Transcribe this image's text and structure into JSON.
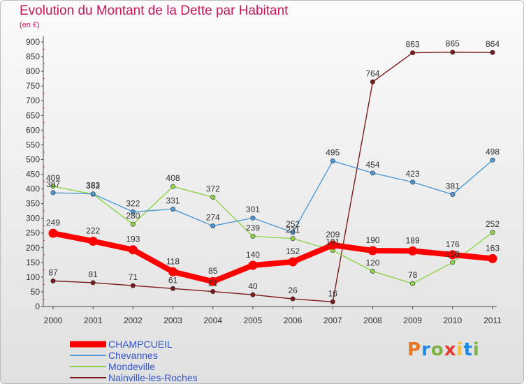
{
  "header": {
    "title": "Evolution du Montant de la Dette par Habitant",
    "subtitle": "(en €)"
  },
  "logo": {
    "text": "Proxiti",
    "colors": [
      "#e87722",
      "#1e88e5",
      "#7cb342",
      "#e53935",
      "#fbc02d",
      "#1e88e5",
      "#7cb342"
    ]
  },
  "chart_data": {
    "type": "line",
    "x": [
      "2000",
      "2001",
      "2002",
      "2003",
      "2004",
      "2005",
      "2006",
      "2007",
      "2008",
      "2009",
      "2010",
      "2011"
    ],
    "ylim": [
      0,
      900
    ],
    "yticks": [
      0,
      50,
      100,
      150,
      200,
      250,
      300,
      350,
      400,
      450,
      500,
      550,
      600,
      650,
      700,
      750,
      800,
      850,
      900
    ],
    "grid": false,
    "legend_position": "bottom-left",
    "series": [
      {
        "name": "Nainville-les-Roches",
        "color": "#7b1a1a",
        "values": [
          87,
          81,
          71,
          61,
          51,
          40,
          26,
          16,
          764,
          863,
          865,
          864
        ]
      },
      {
        "name": "Mondeville",
        "color": "#8fd34b",
        "values": [
          409,
          382,
          280,
          408,
          372,
          239,
          231,
          191,
          120,
          78,
          150,
          252
        ]
      },
      {
        "name": "Chevannes",
        "color": "#4f9ad6",
        "values": [
          387,
          383,
          322,
          331,
          274,
          301,
          252,
          495,
          454,
          423,
          381,
          498
        ]
      },
      {
        "name": "CHAMPCUEIL",
        "color": "#ff0000",
        "values": [
          249,
          222,
          193,
          118,
          85,
          140,
          152,
          209,
          190,
          189,
          176,
          163
        ]
      }
    ],
    "legend": [
      "CHAMPCUEIL",
      "Chevannes",
      "Mondeville",
      "Nainville-les-Roches"
    ]
  }
}
